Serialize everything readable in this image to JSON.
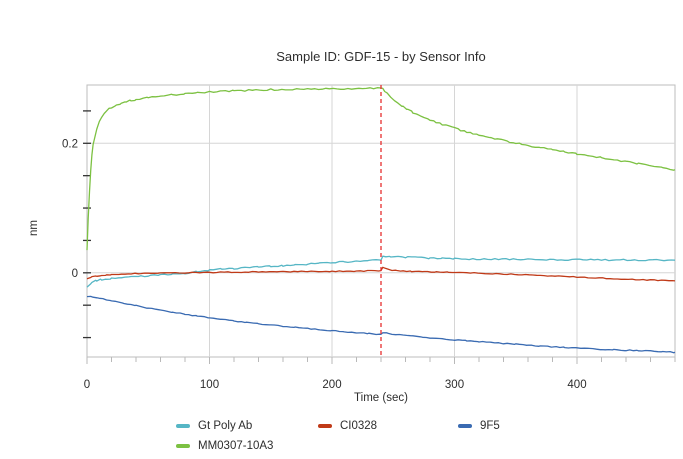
{
  "chart_data": {
    "type": "line",
    "title": "Sample ID: GDF-15 - by Sensor Info",
    "xlabel": "Time (sec)",
    "ylabel": "nm",
    "xlim": [
      0,
      480
    ],
    "ylim": [
      -0.13,
      0.29
    ],
    "x_ticks": [
      {
        "value": 0,
        "label": "0"
      },
      {
        "value": 100,
        "label": "100"
      },
      {
        "value": 200,
        "label": "200"
      },
      {
        "value": 300,
        "label": "300"
      },
      {
        "value": 400,
        "label": "400"
      }
    ],
    "x_minor_tick_step": 20,
    "y_ticks": [
      {
        "value": 0,
        "label": "0"
      },
      {
        "value": 0.2,
        "label": "0.2"
      }
    ],
    "y_minor_tick_step": 0.05,
    "y_minor_tick_range": [
      -0.1,
      0.25
    ],
    "grid": {
      "x_values": [
        100,
        200,
        300,
        400
      ],
      "y_values": [
        0,
        0.2
      ]
    },
    "marker_line": {
      "x": 240,
      "style": "dashed",
      "color": "#e62e2e"
    },
    "legend_position": "bottom",
    "colors": {
      "plot_border": "#bdbdbd",
      "gridline": "#d6d6d6",
      "x_tick": "#b9b9b9",
      "y_tick": "#333333",
      "text": "#2d2d2d"
    },
    "series": [
      {
        "name": "Gt Poly Ab",
        "color": "#56b6c5",
        "noise": 0.0011,
        "points": [
          [
            0,
            -0.021
          ],
          [
            4,
            -0.0145
          ],
          [
            8,
            -0.0118
          ],
          [
            12,
            -0.0102
          ],
          [
            16,
            -0.0092
          ],
          [
            20,
            -0.0085
          ],
          [
            28,
            -0.0072
          ],
          [
            36,
            -0.0062
          ],
          [
            44,
            -0.0052
          ],
          [
            52,
            -0.0044
          ],
          [
            60,
            -0.0036
          ],
          [
            70,
            -0.0022
          ],
          [
            80,
            -0.0006
          ],
          [
            90,
            0.0018
          ],
          [
            100,
            0.0042
          ],
          [
            110,
            0.0058
          ],
          [
            120,
            0.0068
          ],
          [
            130,
            0.0078
          ],
          [
            140,
            0.0088
          ],
          [
            150,
            0.01
          ],
          [
            160,
            0.0112
          ],
          [
            170,
            0.0124
          ],
          [
            180,
            0.0134
          ],
          [
            190,
            0.0146
          ],
          [
            200,
            0.0158
          ],
          [
            210,
            0.0168
          ],
          [
            220,
            0.0178
          ],
          [
            230,
            0.0188
          ],
          [
            240,
            0.0198
          ],
          [
            241.5,
            0.0262
          ],
          [
            244,
            0.0258
          ],
          [
            248,
            0.0252
          ],
          [
            254,
            0.0246
          ],
          [
            262,
            0.024
          ],
          [
            270,
            0.0233
          ],
          [
            280,
            0.0228
          ],
          [
            290,
            0.0222
          ],
          [
            300,
            0.0218
          ],
          [
            315,
            0.0211
          ],
          [
            330,
            0.0207
          ],
          [
            345,
            0.0211
          ],
          [
            360,
            0.0204
          ],
          [
            375,
            0.0207
          ],
          [
            390,
            0.0201
          ],
          [
            405,
            0.0204
          ],
          [
            420,
            0.0197
          ],
          [
            435,
            0.0201
          ],
          [
            450,
            0.0195
          ],
          [
            465,
            0.0198
          ],
          [
            480,
            0.0194
          ]
        ]
      },
      {
        "name": "CI0328",
        "color": "#c03a18",
        "noise": 0.0007,
        "points": [
          [
            0,
            -0.009
          ],
          [
            4,
            -0.006
          ],
          [
            8,
            -0.0047
          ],
          [
            12,
            -0.0038
          ],
          [
            16,
            -0.0032
          ],
          [
            20,
            -0.0027
          ],
          [
            28,
            -0.0019
          ],
          [
            36,
            -0.0013
          ],
          [
            44,
            -0.0009
          ],
          [
            52,
            -0.0006
          ],
          [
            60,
            -0.0004
          ],
          [
            80,
            0.0
          ],
          [
            100,
            0.0005
          ],
          [
            120,
            0.001
          ],
          [
            140,
            0.0014
          ],
          [
            160,
            0.0018
          ],
          [
            180,
            0.0021
          ],
          [
            200,
            0.0024
          ],
          [
            220,
            0.0027
          ],
          [
            240,
            0.003
          ],
          [
            241.5,
            0.009
          ],
          [
            243.5,
            0.0072
          ],
          [
            246,
            0.0055
          ],
          [
            249,
            0.0042
          ],
          [
            253,
            0.0033
          ],
          [
            258,
            0.0028
          ],
          [
            265,
            0.0023
          ],
          [
            275,
            0.0018
          ],
          [
            285,
            0.0013
          ],
          [
            295,
            0.0008
          ],
          [
            310,
            0.0001
          ],
          [
            325,
            -0.0008
          ],
          [
            340,
            -0.0018
          ],
          [
            355,
            -0.0028
          ],
          [
            370,
            -0.004
          ],
          [
            385,
            -0.0052
          ],
          [
            400,
            -0.0065
          ],
          [
            415,
            -0.0078
          ],
          [
            430,
            -0.009
          ],
          [
            445,
            -0.01
          ],
          [
            460,
            -0.0112
          ],
          [
            480,
            -0.0125
          ]
        ]
      },
      {
        "name": "9F5",
        "color": "#3a6bb2",
        "noise": 0.0007,
        "points": [
          [
            0,
            -0.036
          ],
          [
            5,
            -0.0372
          ],
          [
            10,
            -0.039
          ],
          [
            20,
            -0.043
          ],
          [
            30,
            -0.047
          ],
          [
            40,
            -0.0508
          ],
          [
            50,
            -0.0545
          ],
          [
            60,
            -0.0578
          ],
          [
            70,
            -0.061
          ],
          [
            80,
            -0.064
          ],
          [
            90,
            -0.0668
          ],
          [
            100,
            -0.0694
          ],
          [
            110,
            -0.072
          ],
          [
            120,
            -0.0744
          ],
          [
            130,
            -0.0766
          ],
          [
            140,
            -0.0786
          ],
          [
            150,
            -0.0806
          ],
          [
            160,
            -0.0825
          ],
          [
            170,
            -0.0843
          ],
          [
            180,
            -0.086
          ],
          [
            190,
            -0.0878
          ],
          [
            200,
            -0.0894
          ],
          [
            210,
            -0.091
          ],
          [
            220,
            -0.0925
          ],
          [
            230,
            -0.094
          ],
          [
            240,
            -0.0955
          ],
          [
            241.5,
            -0.0924
          ],
          [
            246,
            -0.0938
          ],
          [
            252,
            -0.0952
          ],
          [
            258,
            -0.0964
          ],
          [
            266,
            -0.098
          ],
          [
            274,
            -0.0994
          ],
          [
            282,
            -0.1008
          ],
          [
            290,
            -0.1021
          ],
          [
            300,
            -0.1036
          ],
          [
            310,
            -0.105
          ],
          [
            320,
            -0.1064
          ],
          [
            330,
            -0.1077
          ],
          [
            340,
            -0.109
          ],
          [
            350,
            -0.1103
          ],
          [
            360,
            -0.1116
          ],
          [
            370,
            -0.113
          ],
          [
            380,
            -0.1142
          ],
          [
            390,
            -0.1153
          ],
          [
            400,
            -0.1163
          ],
          [
            410,
            -0.1173
          ],
          [
            420,
            -0.1183
          ],
          [
            430,
            -0.119
          ],
          [
            440,
            -0.1196
          ],
          [
            450,
            -0.1202
          ],
          [
            460,
            -0.1208
          ],
          [
            470,
            -0.1218
          ],
          [
            480,
            -0.1228
          ]
        ]
      },
      {
        "name": "MM0307-10A3",
        "color": "#7cc142",
        "noise": 0.0012,
        "points": [
          [
            0,
            0.035
          ],
          [
            1,
            0.085
          ],
          [
            2,
            0.125
          ],
          [
            3,
            0.158
          ],
          [
            4,
            0.182
          ],
          [
            5,
            0.197
          ],
          [
            6,
            0.207
          ],
          [
            8,
            0.222
          ],
          [
            10,
            0.233
          ],
          [
            12,
            0.2405
          ],
          [
            14,
            0.246
          ],
          [
            16,
            0.25
          ],
          [
            18,
            0.253
          ],
          [
            20,
            0.2555
          ],
          [
            24,
            0.2595
          ],
          [
            28,
            0.262
          ],
          [
            32,
            0.2642
          ],
          [
            36,
            0.266
          ],
          [
            40,
            0.2675
          ],
          [
            50,
            0.2705
          ],
          [
            60,
            0.2728
          ],
          [
            70,
            0.2748
          ],
          [
            80,
            0.2765
          ],
          [
            90,
            0.278
          ],
          [
            100,
            0.2792
          ],
          [
            110,
            0.2802
          ],
          [
            120,
            0.281
          ],
          [
            135,
            0.282
          ],
          [
            150,
            0.2828
          ],
          [
            165,
            0.2833
          ],
          [
            180,
            0.2838
          ],
          [
            195,
            0.2842
          ],
          [
            210,
            0.2845
          ],
          [
            225,
            0.2848
          ],
          [
            240,
            0.285
          ],
          [
            241.5,
            0.2838
          ],
          [
            243,
            0.2805
          ],
          [
            245,
            0.2768
          ],
          [
            248,
            0.271
          ],
          [
            251,
            0.266
          ],
          [
            254,
            0.2615
          ],
          [
            258,
            0.2562
          ],
          [
            262,
            0.2517
          ],
          [
            266,
            0.2477
          ],
          [
            270,
            0.244
          ],
          [
            275,
            0.24
          ],
          [
            280,
            0.2362
          ],
          [
            285,
            0.2328
          ],
          [
            290,
            0.2295
          ],
          [
            295,
            0.2262
          ],
          [
            300,
            0.2232
          ],
          [
            305,
            0.2203
          ],
          [
            310,
            0.2176
          ],
          [
            315,
            0.2152
          ],
          [
            320,
            0.2128
          ],
          [
            325,
            0.2106
          ],
          [
            330,
            0.2085
          ],
          [
            335,
            0.2064
          ],
          [
            340,
            0.2044
          ],
          [
            345,
            0.2024
          ],
          [
            350,
            0.2005
          ],
          [
            355,
            0.1986
          ],
          [
            360,
            0.1968
          ],
          [
            370,
            0.1933
          ],
          [
            380,
            0.19
          ],
          [
            390,
            0.1868
          ],
          [
            400,
            0.1838
          ],
          [
            410,
            0.1808
          ],
          [
            420,
            0.1778
          ],
          [
            430,
            0.1748
          ],
          [
            440,
            0.1718
          ],
          [
            450,
            0.1688
          ],
          [
            460,
            0.1658
          ],
          [
            470,
            0.1625
          ],
          [
            480,
            0.1592
          ]
        ]
      }
    ]
  }
}
